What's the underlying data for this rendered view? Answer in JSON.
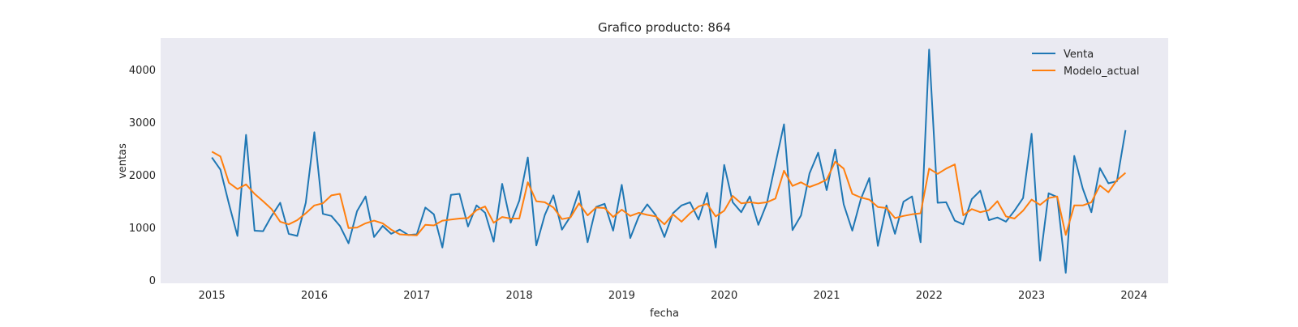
{
  "chart_data": {
    "type": "line",
    "title": "Grafico producto: 864",
    "xlabel": "fecha",
    "ylabel": "ventas",
    "x_start": "2015-01",
    "x_frequency": "monthly",
    "xlim": [
      "2014-07",
      "2024-05"
    ],
    "ylim": [
      -60,
      4600
    ],
    "x_ticks": [
      "2015",
      "2016",
      "2017",
      "2018",
      "2019",
      "2020",
      "2021",
      "2022",
      "2023",
      "2024"
    ],
    "y_ticks": [
      0,
      1000,
      2000,
      3000,
      4000
    ],
    "grid": false,
    "background": "#EAEAF2",
    "legend": {
      "position": "top-right",
      "show": true
    },
    "series": [
      {
        "name": "Venta",
        "color": "#1F77B4",
        "values": [
          2330,
          2100,
          1450,
          840,
          2760,
          940,
          930,
          1220,
          1470,
          880,
          840,
          1470,
          2810,
          1260,
          1220,
          1030,
          700,
          1310,
          1590,
          820,
          1030,
          880,
          960,
          860,
          870,
          1380,
          1250,
          620,
          1620,
          1640,
          1020,
          1420,
          1280,
          730,
          1830,
          1090,
          1510,
          2330,
          660,
          1240,
          1610,
          960,
          1210,
          1690,
          720,
          1390,
          1450,
          940,
          1810,
          800,
          1210,
          1440,
          1230,
          820,
          1270,
          1420,
          1480,
          1150,
          1660,
          620,
          2190,
          1480,
          1290,
          1590,
          1050,
          1460,
          2210,
          2960,
          950,
          1230,
          2030,
          2420,
          1710,
          2480,
          1440,
          940,
          1540,
          1940,
          650,
          1420,
          880,
          1490,
          1590,
          720,
          4380,
          1470,
          1480,
          1130,
          1060,
          1540,
          1700,
          1140,
          1190,
          1110,
          1320,
          1560,
          2780,
          370,
          1650,
          1580,
          140,
          2360,
          1740,
          1290,
          2130,
          1840,
          1880,
          2850
        ]
      },
      {
        "name": "Modelo_actual",
        "color": "#FF7F0E",
        "values": [
          2440,
          2350,
          1850,
          1730,
          1820,
          1640,
          1500,
          1350,
          1110,
          1060,
          1140,
          1270,
          1420,
          1460,
          1610,
          1640,
          990,
          1000,
          1080,
          1130,
          1080,
          960,
          870,
          860,
          850,
          1050,
          1040,
          1130,
          1150,
          1170,
          1180,
          1330,
          1400,
          1090,
          1200,
          1170,
          1170,
          1860,
          1500,
          1480,
          1380,
          1160,
          1190,
          1460,
          1230,
          1380,
          1370,
          1200,
          1340,
          1220,
          1280,
          1240,
          1210,
          1060,
          1250,
          1110,
          1270,
          1400,
          1450,
          1210,
          1320,
          1600,
          1460,
          1480,
          1460,
          1480,
          1550,
          2080,
          1790,
          1860,
          1770,
          1830,
          1910,
          2250,
          2120,
          1640,
          1570,
          1530,
          1390,
          1370,
          1180,
          1220,
          1250,
          1270,
          2120,
          2020,
          2120,
          2200,
          1230,
          1350,
          1290,
          1330,
          1500,
          1210,
          1170,
          1320,
          1530,
          1430,
          1560,
          1590,
          860,
          1420,
          1420,
          1480,
          1800,
          1670,
          1900,
          2040
        ]
      }
    ]
  }
}
